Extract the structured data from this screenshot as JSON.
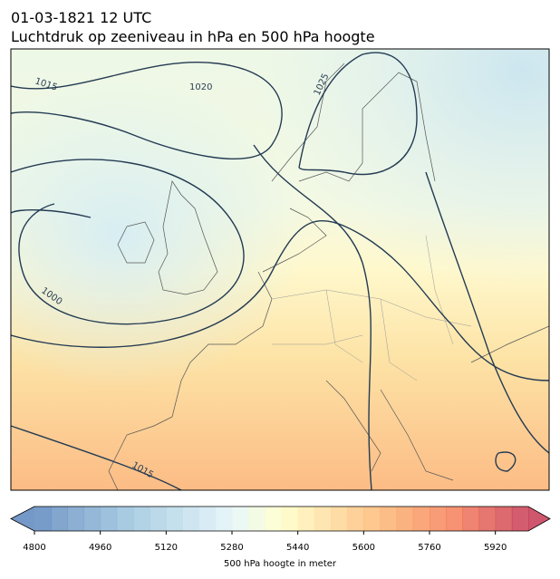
{
  "header": {
    "title": "01-03-1821 12 UTC",
    "subtitle": "Luchtdruk op zeeniveau in hPa en 500 hPa hoogte"
  },
  "map": {
    "contour_labels": [
      "1015",
      "1020",
      "1025",
      "1000",
      "1015"
    ]
  },
  "colorbar": {
    "label": "500 hPa hoogte in meter",
    "xlim": [
      4800,
      6000
    ],
    "xticks": [
      4800,
      4960,
      5120,
      5280,
      5440,
      5600,
      5760,
      5920
    ]
  }
}
